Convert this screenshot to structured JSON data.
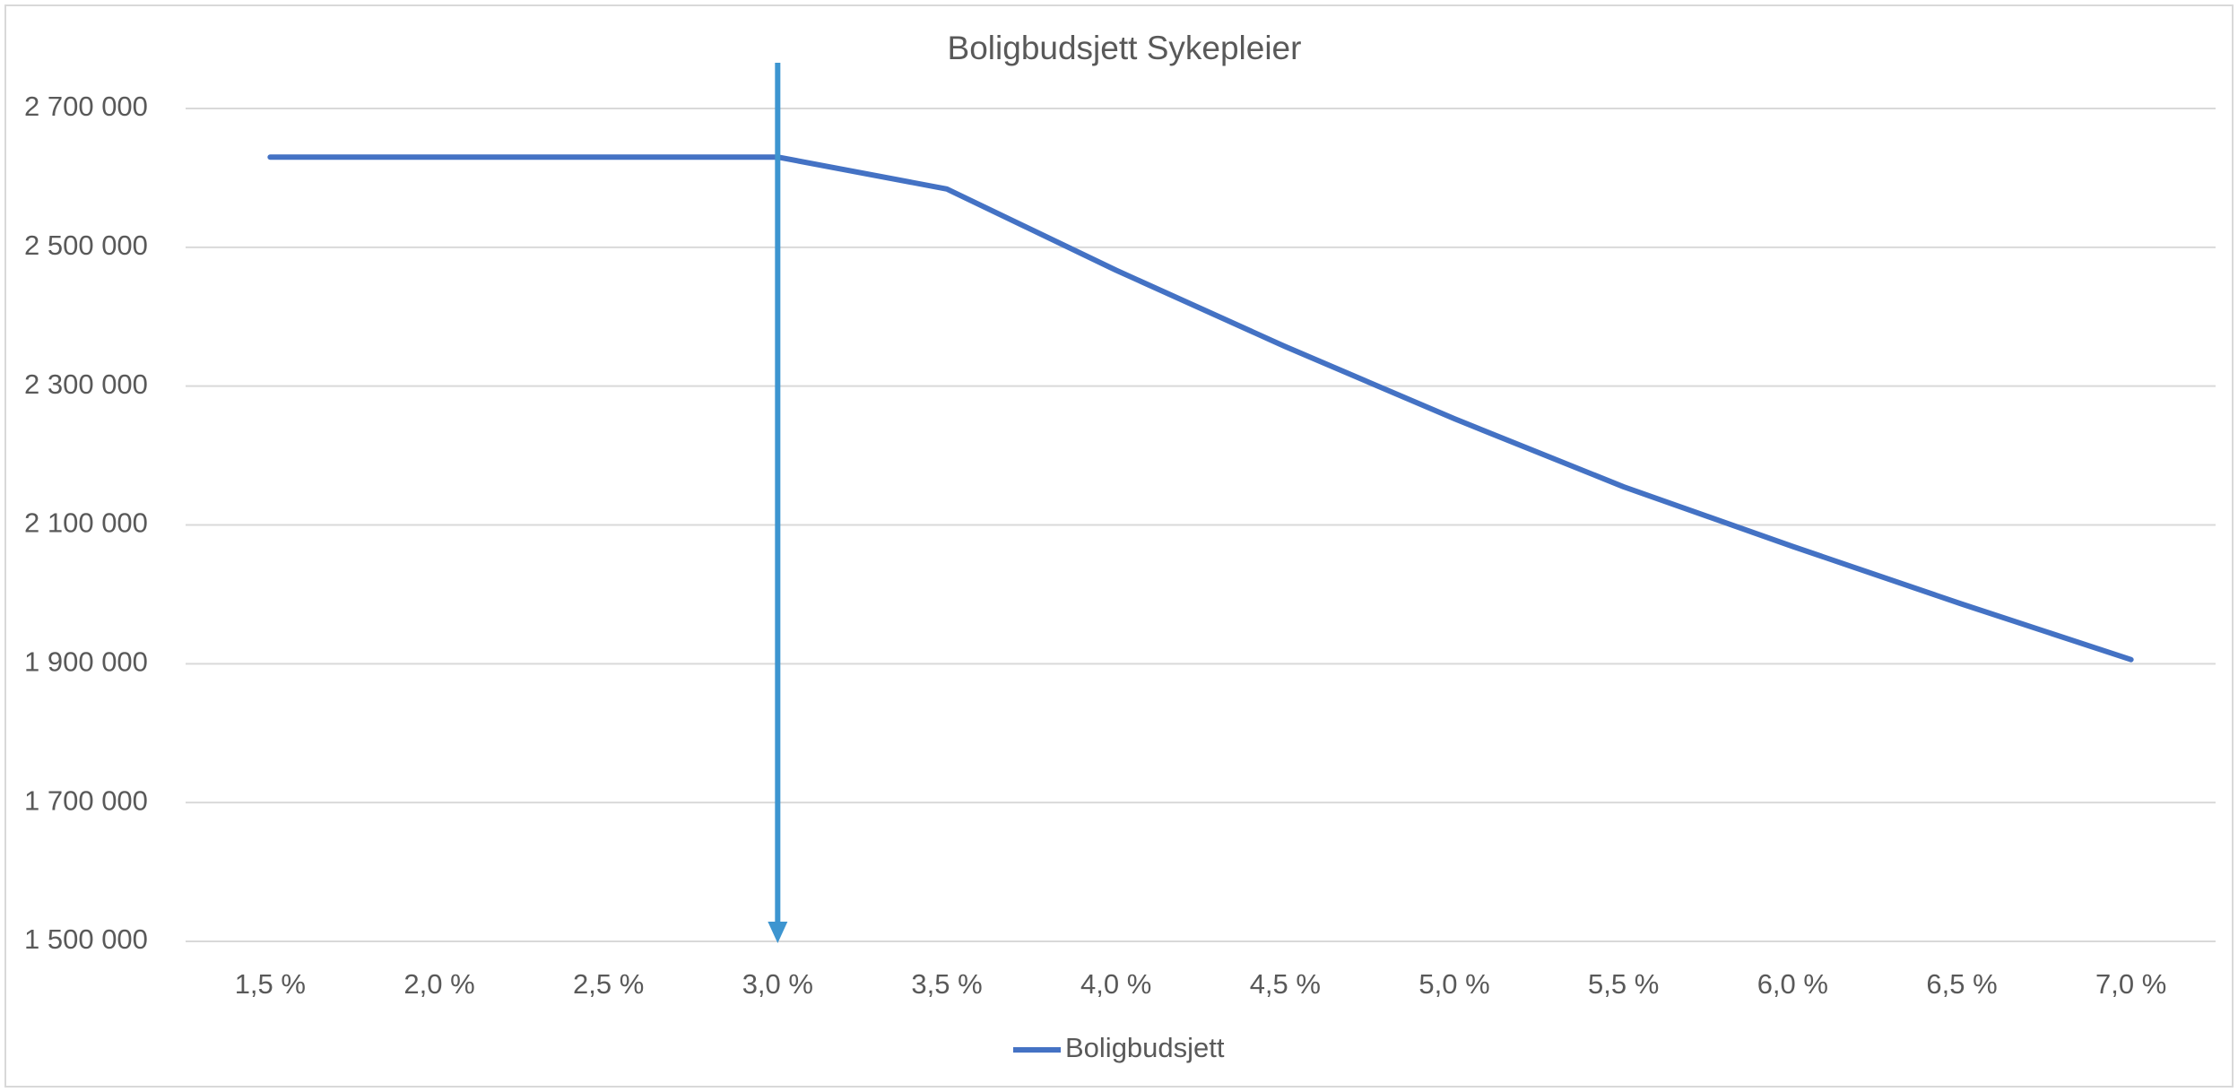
{
  "chart_data": {
    "type": "line",
    "title": "Boligbudsjett Sykepleier",
    "categories": [
      "1,5 %",
      "2,0 %",
      "2,5 %",
      "3,0 %",
      "3,5 %",
      "4,0 %",
      "4,5 %",
      "5,0 %",
      "5,5 %",
      "6,0 %",
      "6,5 %",
      "7,0 %"
    ],
    "series": [
      {
        "name": "Boligbudsjett",
        "color": "#4472c4",
        "values": [
          2630000,
          2630000,
          2630000,
          2630000,
          2584000,
          2467000,
          2357000,
          2253000,
          2155000,
          2069000,
          1986000,
          1906000
        ]
      }
    ],
    "ylim": [
      1500000,
      2700000
    ],
    "yticks": [
      {
        "value": 1500000,
        "label": "1 500 000"
      },
      {
        "value": 1700000,
        "label": "1 700 000"
      },
      {
        "value": 1900000,
        "label": "1 900 000"
      },
      {
        "value": 2100000,
        "label": "2 100 000"
      },
      {
        "value": 2300000,
        "label": "2 300 000"
      },
      {
        "value": 2500000,
        "label": "2 500 000"
      },
      {
        "value": 2700000,
        "label": "2 700 000"
      }
    ],
    "grid": true,
    "legend": "bottom"
  }
}
